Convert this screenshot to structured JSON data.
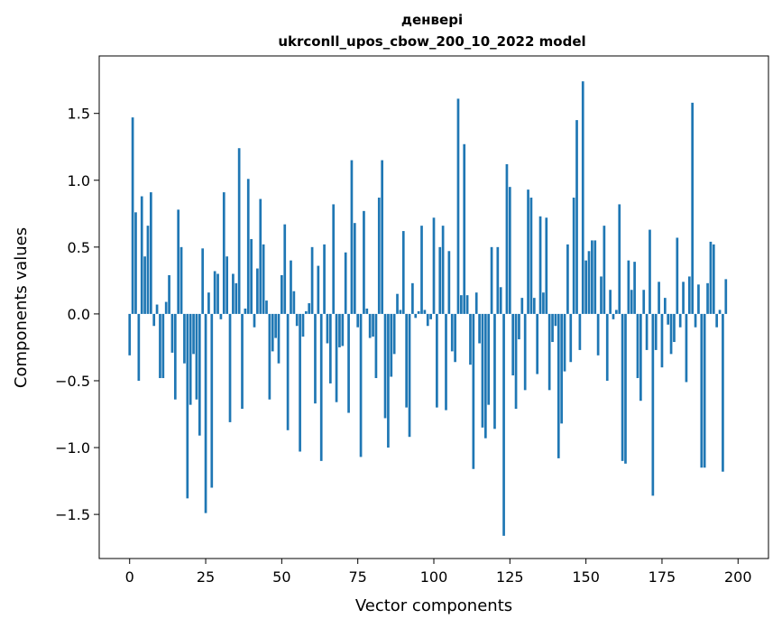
{
  "chart_data": {
    "type": "bar",
    "title_line1": "денверi",
    "title_line2": "ukrconll_upos_cbow_200_10_2022 model",
    "xlabel": "Vector components",
    "ylabel": "Components values",
    "xlim": [
      -10,
      210
    ],
    "ylim": [
      -1.83,
      1.93
    ],
    "xticks": [
      0,
      25,
      50,
      75,
      100,
      125,
      150,
      175,
      200
    ],
    "yticks": [
      -1.5,
      -1.0,
      -0.5,
      0.0,
      0.5,
      1.0,
      1.5
    ],
    "ytick_labels": [
      "−1.5",
      "−1.0",
      "−0.5",
      "0.0",
      "0.5",
      "1.0",
      "1.5"
    ],
    "bar_color": "#1f77b4",
    "grid": false,
    "values": [
      -0.31,
      1.47,
      0.76,
      -0.5,
      0.88,
      0.43,
      0.66,
      0.91,
      -0.09,
      0.07,
      -0.48,
      -0.48,
      0.09,
      0.29,
      -0.29,
      -0.64,
      0.78,
      0.5,
      -0.37,
      -1.38,
      -0.68,
      -0.3,
      -0.64,
      -0.91,
      0.49,
      -1.49,
      0.16,
      -1.3,
      0.32,
      0.3,
      -0.04,
      0.91,
      0.43,
      -0.81,
      0.3,
      0.23,
      1.24,
      -0.71,
      0.04,
      1.01,
      0.56,
      -0.1,
      0.34,
      0.86,
      0.52,
      0.1,
      -0.64,
      -0.28,
      -0.18,
      -0.37,
      0.29,
      0.67,
      -0.87,
      0.4,
      0.17,
      -0.09,
      -1.03,
      -0.17,
      0.02,
      0.08,
      0.5,
      -0.67,
      0.36,
      -1.1,
      0.52,
      -0.22,
      -0.52,
      0.82,
      -0.66,
      -0.25,
      -0.24,
      0.46,
      -0.74,
      1.15,
      0.68,
      -0.1,
      -1.07,
      0.77,
      0.04,
      -0.18,
      -0.17,
      -0.48,
      0.87,
      1.15,
      -0.78,
      -1.0,
      -0.47,
      -0.3,
      0.15,
      0.03,
      0.62,
      -0.7,
      -0.92,
      0.23,
      -0.03,
      0.02,
      0.66,
      0.03,
      -0.09,
      -0.04,
      0.72,
      -0.7,
      0.5,
      0.66,
      -0.72,
      0.47,
      -0.28,
      -0.36,
      1.61,
      0.14,
      1.27,
      0.14,
      -0.38,
      -1.16,
      0.16,
      -0.22,
      -0.85,
      -0.93,
      -0.68,
      0.5,
      -0.86,
      0.5,
      0.2,
      -1.66,
      1.12,
      0.95,
      -0.46,
      -0.71,
      -0.19,
      0.12,
      -0.57,
      0.93,
      0.87,
      0.12,
      -0.45,
      0.73,
      0.16,
      0.72,
      -0.57,
      -0.21,
      -0.09,
      -1.08,
      -0.82,
      -0.43,
      0.52,
      -0.36,
      0.87,
      1.45,
      -0.27,
      1.74,
      0.4,
      0.47,
      0.55,
      0.55,
      -0.31,
      0.28,
      0.66,
      -0.5,
      0.18,
      -0.04,
      0.03,
      0.82,
      -1.1,
      -1.12,
      0.4,
      0.18,
      0.39,
      -0.48,
      -0.65,
      0.18,
      -0.27,
      0.63,
      -1.36,
      -0.27,
      0.24,
      -0.4,
      0.12,
      -0.08,
      -0.3,
      -0.21,
      0.57,
      -0.1,
      0.24,
      -0.51,
      0.28,
      1.58,
      -0.1,
      0.22,
      -1.15,
      -1.15,
      0.23,
      0.54,
      0.52,
      -0.1,
      0.03,
      -1.18,
      0.26
    ]
  }
}
